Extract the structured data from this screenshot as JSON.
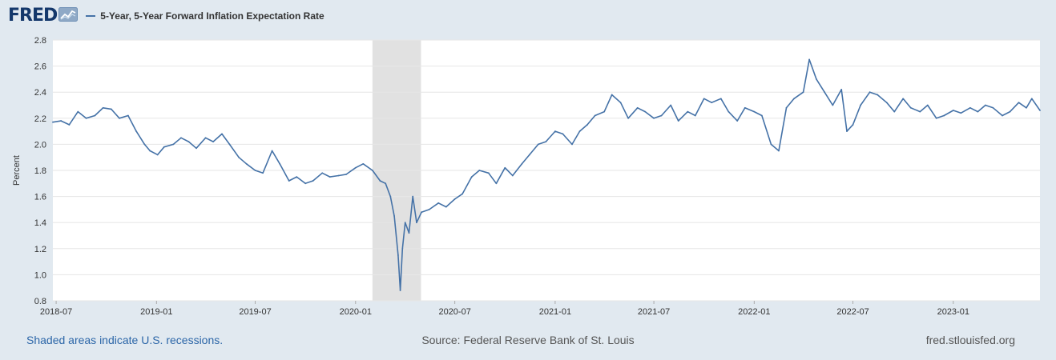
{
  "header": {
    "logo_text": "FRED",
    "logo_icon": "fred-chart-icon"
  },
  "legend": {
    "label": "5-Year, 5-Year Forward Inflation Expectation Rate"
  },
  "footer": {
    "recession_note": "Shaded areas indicate U.S. recessions.",
    "source": "Source: Federal Reserve Bank of St. Louis",
    "site": "fred.stlouisfed.org"
  },
  "colors": {
    "series": "#4572a7",
    "recession": "#e1e1e1",
    "background": "#e1e9f0",
    "plot_background": "#ffffff",
    "gridline": "#e6e6e6",
    "link": "#2c66a8"
  },
  "chart_data": {
    "type": "line",
    "title": "",
    "xlabel": "",
    "ylabel": "Percent",
    "ylim": [
      0.8,
      2.8
    ],
    "yticks": [
      0.8,
      1.0,
      1.2,
      1.4,
      1.6,
      1.8,
      2.0,
      2.2,
      2.4,
      2.6,
      2.8
    ],
    "xlim": [
      "2018-06-25",
      "2023-06-09"
    ],
    "xticks": [
      "2018-07",
      "2019-01",
      "2019-07",
      "2020-01",
      "2020-07",
      "2021-01",
      "2021-07",
      "2022-01",
      "2022-07",
      "2023-01"
    ],
    "grid": true,
    "legend_position": "top-left",
    "recessions": [
      {
        "start": "2020-02-01",
        "end": "2020-04-30"
      }
    ],
    "series": [
      {
        "name": "5-Year, 5-Year Forward Inflation Expectation Rate",
        "x": [
          "2018-06-25",
          "2018-07-10",
          "2018-07-25",
          "2018-08-10",
          "2018-08-25",
          "2018-09-10",
          "2018-09-25",
          "2018-10-10",
          "2018-10-25",
          "2018-11-10",
          "2018-11-25",
          "2018-12-10",
          "2018-12-20",
          "2019-01-03",
          "2019-01-15",
          "2019-02-01",
          "2019-02-15",
          "2019-03-01",
          "2019-03-15",
          "2019-04-01",
          "2019-04-15",
          "2019-05-01",
          "2019-05-15",
          "2019-06-01",
          "2019-06-15",
          "2019-07-01",
          "2019-07-15",
          "2019-08-01",
          "2019-08-15",
          "2019-09-01",
          "2019-09-15",
          "2019-10-01",
          "2019-10-15",
          "2019-11-01",
          "2019-11-15",
          "2019-12-01",
          "2019-12-15",
          "2020-01-01",
          "2020-01-15",
          "2020-02-01",
          "2020-02-15",
          "2020-02-25",
          "2020-03-05",
          "2020-03-12",
          "2020-03-19",
          "2020-03-23",
          "2020-03-27",
          "2020-04-01",
          "2020-04-08",
          "2020-04-15",
          "2020-04-22",
          "2020-05-01",
          "2020-05-15",
          "2020-06-01",
          "2020-06-15",
          "2020-07-01",
          "2020-07-15",
          "2020-08-01",
          "2020-08-15",
          "2020-09-01",
          "2020-09-15",
          "2020-10-01",
          "2020-10-15",
          "2020-11-01",
          "2020-11-15",
          "2020-12-01",
          "2020-12-15",
          "2021-01-01",
          "2021-01-15",
          "2021-02-01",
          "2021-02-15",
          "2021-03-01",
          "2021-03-15",
          "2021-04-01",
          "2021-04-15",
          "2021-05-01",
          "2021-05-15",
          "2021-06-01",
          "2021-06-15",
          "2021-07-01",
          "2021-07-15",
          "2021-08-01",
          "2021-08-15",
          "2021-09-01",
          "2021-09-15",
          "2021-10-01",
          "2021-10-15",
          "2021-11-01",
          "2021-11-15",
          "2021-12-01",
          "2021-12-15",
          "2022-01-01",
          "2022-01-15",
          "2022-02-01",
          "2022-02-15",
          "2022-03-01",
          "2022-03-15",
          "2022-04-01",
          "2022-04-12",
          "2022-04-25",
          "2022-05-10",
          "2022-05-25",
          "2022-06-10",
          "2022-06-20",
          "2022-07-01",
          "2022-07-15",
          "2022-08-01",
          "2022-08-15",
          "2022-09-01",
          "2022-09-15",
          "2022-10-01",
          "2022-10-15",
          "2022-11-01",
          "2022-11-15",
          "2022-12-01",
          "2022-12-15",
          "2023-01-01",
          "2023-01-15",
          "2023-02-01",
          "2023-02-15",
          "2023-03-01",
          "2023-03-15",
          "2023-04-01",
          "2023-04-15",
          "2023-05-01",
          "2023-05-15",
          "2023-05-25",
          "2023-06-09"
        ],
        "values": [
          2.17,
          2.18,
          2.15,
          2.25,
          2.2,
          2.22,
          2.28,
          2.27,
          2.2,
          2.22,
          2.1,
          2.0,
          1.95,
          1.92,
          1.98,
          2.0,
          2.05,
          2.02,
          1.97,
          2.05,
          2.02,
          2.08,
          2.0,
          1.9,
          1.85,
          1.8,
          1.78,
          1.95,
          1.85,
          1.72,
          1.75,
          1.7,
          1.72,
          1.78,
          1.75,
          1.76,
          1.77,
          1.82,
          1.85,
          1.8,
          1.72,
          1.7,
          1.6,
          1.45,
          1.15,
          0.88,
          1.2,
          1.4,
          1.32,
          1.6,
          1.4,
          1.48,
          1.5,
          1.55,
          1.52,
          1.58,
          1.62,
          1.75,
          1.8,
          1.78,
          1.7,
          1.82,
          1.76,
          1.85,
          1.92,
          2.0,
          2.02,
          2.1,
          2.08,
          2.0,
          2.1,
          2.15,
          2.22,
          2.25,
          2.38,
          2.32,
          2.2,
          2.28,
          2.25,
          2.2,
          2.22,
          2.3,
          2.18,
          2.25,
          2.22,
          2.35,
          2.32,
          2.35,
          2.25,
          2.18,
          2.28,
          2.25,
          2.22,
          2.0,
          1.95,
          2.28,
          2.35,
          2.4,
          2.65,
          2.5,
          2.4,
          2.3,
          2.42,
          2.1,
          2.15,
          2.3,
          2.4,
          2.38,
          2.32,
          2.25,
          2.35,
          2.28,
          2.25,
          2.3,
          2.2,
          2.22,
          2.26,
          2.24,
          2.28,
          2.25,
          2.3,
          2.28,
          2.22,
          2.25,
          2.32,
          2.28,
          2.35,
          2.26
        ]
      }
    ]
  }
}
